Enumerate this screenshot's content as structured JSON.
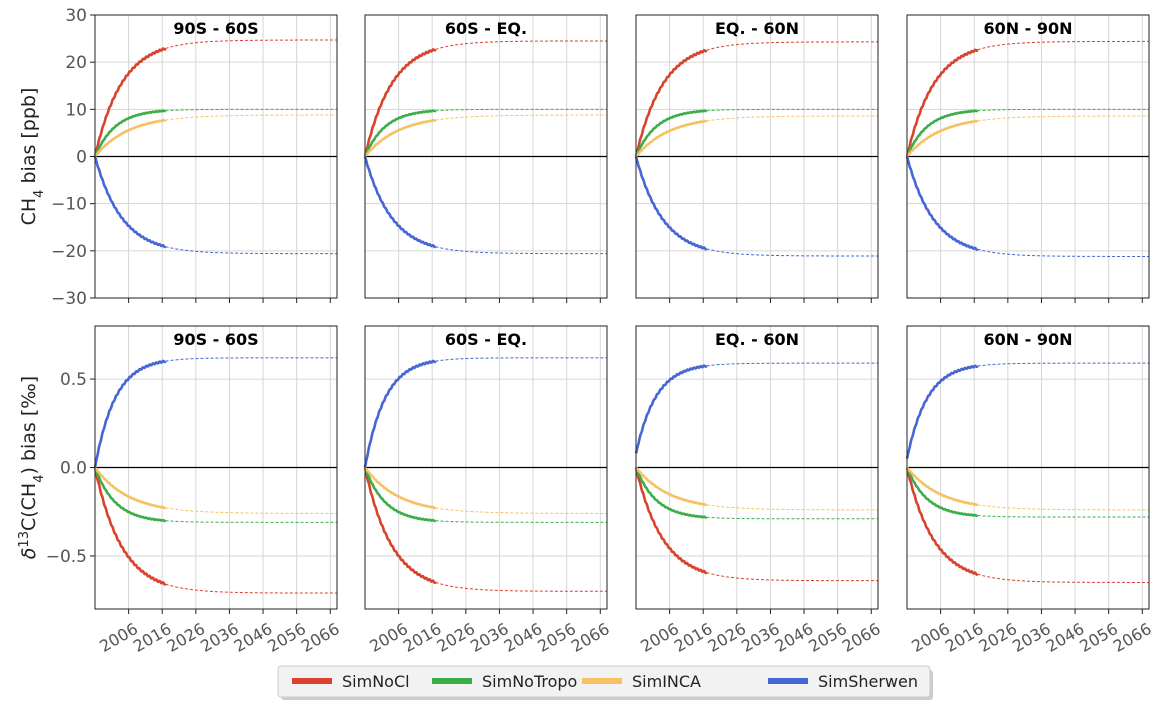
{
  "figure": {
    "legend": {
      "placement": "bottom-center",
      "entries": [
        {
          "name": "SimNoCl",
          "color": "#d9432e"
        },
        {
          "name": "SimNoTropo",
          "color": "#3bae49"
        },
        {
          "name": "SimINCA",
          "color": "#f7c161"
        },
        {
          "name": "SimSherwen",
          "color": "#4566d4"
        }
      ]
    }
  },
  "chart_data": [
    {
      "type": "line",
      "row": 0,
      "col": 0,
      "title": "90S - 60S",
      "ylabel": "CH4 bias [ppb]",
      "ylim": [
        -30,
        30
      ],
      "yticks": [
        30,
        20,
        10,
        0,
        -10,
        -20,
        -30
      ],
      "ytick_labels": [
        "30",
        "20",
        "10",
        "0",
        "−10",
        "−20",
        "−30"
      ],
      "xlim": [
        1996,
        2068
      ],
      "xticks": [
        2006,
        2016,
        2026,
        2036,
        2046,
        2056,
        2066
      ],
      "x_start": 1996,
      "solid_end": 2017,
      "grid": true,
      "series": [
        {
          "name": "SimNoCl",
          "asymptote": 24.7,
          "tau": 8.0
        },
        {
          "name": "SimNoTropo",
          "asymptote": 10.0,
          "tau": 6.0
        },
        {
          "name": "SimINCA",
          "asymptote": 8.8,
          "tau": 10.0
        },
        {
          "name": "SimSherwen",
          "asymptote": -20.6,
          "tau": 8.0
        }
      ]
    },
    {
      "type": "line",
      "row": 0,
      "col": 1,
      "title": "60S - EQ.",
      "ylim": [
        -30,
        30
      ],
      "xlim": [
        1996,
        2068
      ],
      "xticks": [
        2006,
        2016,
        2026,
        2036,
        2046,
        2056,
        2066
      ],
      "x_start": 1996,
      "solid_end": 2017,
      "grid": true,
      "series": [
        {
          "name": "SimNoCl",
          "asymptote": 24.5,
          "tau": 8.0
        },
        {
          "name": "SimNoTropo",
          "asymptote": 10.0,
          "tau": 6.0
        },
        {
          "name": "SimINCA",
          "asymptote": 8.8,
          "tau": 10.0
        },
        {
          "name": "SimSherwen",
          "asymptote": -20.6,
          "tau": 8.0
        }
      ]
    },
    {
      "type": "line",
      "row": 0,
      "col": 2,
      "title": "EQ. - 60N",
      "ylim": [
        -30,
        30
      ],
      "xlim": [
        1996,
        2068
      ],
      "xticks": [
        2006,
        2016,
        2026,
        2036,
        2046,
        2056,
        2066
      ],
      "x_start": 1996,
      "solid_end": 2017,
      "grid": true,
      "series": [
        {
          "name": "SimNoCl",
          "asymptote": 24.3,
          "tau": 8.0
        },
        {
          "name": "SimNoTropo",
          "asymptote": 10.0,
          "tau": 6.0
        },
        {
          "name": "SimINCA",
          "asymptote": 8.6,
          "tau": 10.0
        },
        {
          "name": "SimSherwen",
          "asymptote": -21.1,
          "tau": 8.0
        }
      ]
    },
    {
      "type": "line",
      "row": 0,
      "col": 3,
      "title": "60N - 90N",
      "ylim": [
        -30,
        30
      ],
      "xlim": [
        1996,
        2068
      ],
      "xticks": [
        2006,
        2016,
        2026,
        2036,
        2046,
        2056,
        2066
      ],
      "x_start": 1996,
      "solid_end": 2017,
      "grid": true,
      "series": [
        {
          "name": "SimNoCl",
          "asymptote": 24.4,
          "tau": 8.0
        },
        {
          "name": "SimNoTropo",
          "asymptote": 10.0,
          "tau": 6.0
        },
        {
          "name": "SimINCA",
          "asymptote": 8.6,
          "tau": 10.0
        },
        {
          "name": "SimSherwen",
          "asymptote": -21.2,
          "tau": 8.0
        }
      ]
    },
    {
      "type": "line",
      "row": 1,
      "col": 0,
      "title": "90S - 60S",
      "ylabel": "δ13C(CH4) bias [‰]",
      "ylim": [
        -0.8,
        0.8
      ],
      "yticks": [
        0.5,
        0.0,
        -0.5
      ],
      "ytick_labels": [
        "0.5",
        "0.0",
        "−0.5"
      ],
      "xlim": [
        1996,
        2068
      ],
      "xticks": [
        2006,
        2016,
        2026,
        2036,
        2046,
        2056,
        2066
      ],
      "xtick_labels": [
        "2006",
        "2016",
        "2026",
        "2036",
        "2046",
        "2056",
        "2066"
      ],
      "x_start": 1996,
      "solid_end": 2017,
      "grid": true,
      "series": [
        {
          "name": "SimNoCl",
          "asymptote": -0.71,
          "tau": 8.0
        },
        {
          "name": "SimNoTropo",
          "asymptote": -0.31,
          "tau": 6.0
        },
        {
          "name": "SimINCA",
          "asymptote": -0.26,
          "tau": 10.0
        },
        {
          "name": "SimSherwen",
          "asymptote": 0.62,
          "tau": 6.0
        }
      ]
    },
    {
      "type": "line",
      "row": 1,
      "col": 1,
      "title": "60S - EQ.",
      "ylim": [
        -0.8,
        0.8
      ],
      "xlim": [
        1996,
        2068
      ],
      "xticks": [
        2006,
        2016,
        2026,
        2036,
        2046,
        2056,
        2066
      ],
      "xtick_labels": [
        "2006",
        "2016",
        "2026",
        "2036",
        "2046",
        "2056",
        "2066"
      ],
      "x_start": 1996,
      "solid_end": 2017,
      "grid": true,
      "series": [
        {
          "name": "SimNoCl",
          "asymptote": -0.7,
          "tau": 8.0
        },
        {
          "name": "SimNoTropo",
          "asymptote": -0.31,
          "tau": 6.0
        },
        {
          "name": "SimINCA",
          "asymptote": -0.26,
          "tau": 10.0
        },
        {
          "name": "SimSherwen",
          "asymptote": 0.62,
          "tau": 6.0
        }
      ]
    },
    {
      "type": "line",
      "row": 1,
      "col": 2,
      "title": "EQ. - 60N",
      "ylim": [
        -0.8,
        0.8
      ],
      "xlim": [
        1996,
        2068
      ],
      "xticks": [
        2006,
        2016,
        2026,
        2036,
        2046,
        2056,
        2066
      ],
      "xtick_labels": [
        "2006",
        "2016",
        "2026",
        "2036",
        "2046",
        "2056",
        "2066"
      ],
      "x_start": 1996,
      "solid_end": 2017,
      "grid": true,
      "series": [
        {
          "name": "SimNoCl",
          "asymptote": -0.64,
          "tau": 8.0
        },
        {
          "name": "SimNoTropo",
          "asymptote": -0.29,
          "tau": 6.0
        },
        {
          "name": "SimINCA",
          "asymptote": -0.24,
          "tau": 10.0
        },
        {
          "name": "SimSherwen",
          "asymptote": 0.59,
          "tau": 6.0,
          "start": 0.08
        }
      ]
    },
    {
      "type": "line",
      "row": 1,
      "col": 3,
      "title": "60N - 90N",
      "ylim": [
        -0.8,
        0.8
      ],
      "xlim": [
        1996,
        2068
      ],
      "xticks": [
        2006,
        2016,
        2026,
        2036,
        2046,
        2056,
        2066
      ],
      "xtick_labels": [
        "2006",
        "2016",
        "2026",
        "2036",
        "2046",
        "2056",
        "2066"
      ],
      "x_start": 1996,
      "solid_end": 2017,
      "grid": true,
      "series": [
        {
          "name": "SimNoCl",
          "asymptote": -0.65,
          "tau": 8.0
        },
        {
          "name": "SimNoTropo",
          "asymptote": -0.28,
          "tau": 6.0
        },
        {
          "name": "SimINCA",
          "asymptote": -0.24,
          "tau": 10.0
        },
        {
          "name": "SimSherwen",
          "asymptote": 0.59,
          "tau": 6.0,
          "start": 0.05
        }
      ]
    }
  ]
}
